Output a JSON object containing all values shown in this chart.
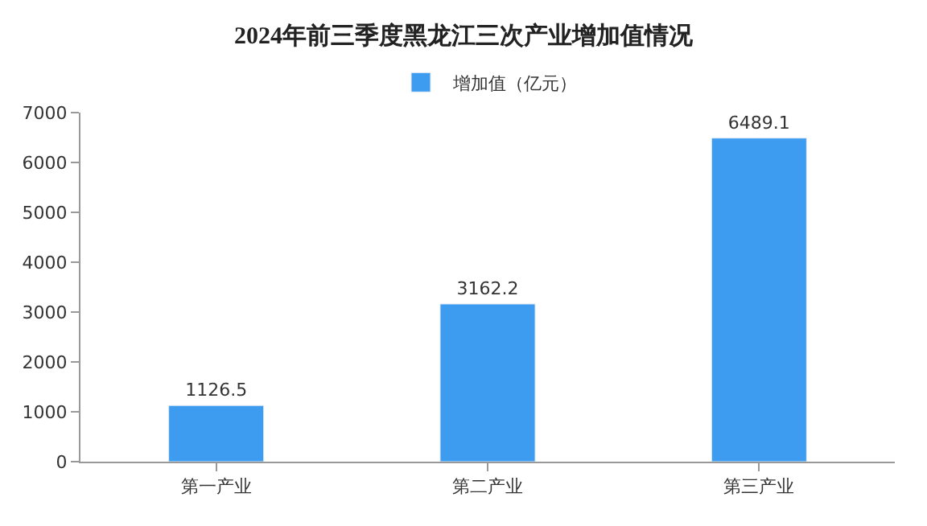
{
  "chart_data": {
    "type": "bar",
    "title": "2024年前三季度黑龙江三次产业增加值情况",
    "categories": [
      "第一产业",
      "第二产业",
      "第三产业"
    ],
    "series": [
      {
        "name": "增加值（亿元）",
        "color": "#3d9cf0",
        "values": [
          1126.5,
          3162.2,
          6489.1
        ]
      }
    ],
    "ylim": [
      0,
      7000
    ],
    "yticks": [
      0,
      1000,
      2000,
      3000,
      4000,
      5000,
      6000,
      7000
    ],
    "data_labels": true,
    "legend": "top"
  }
}
